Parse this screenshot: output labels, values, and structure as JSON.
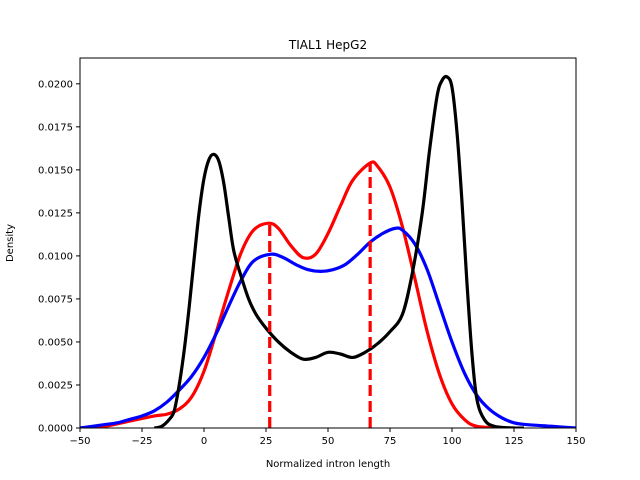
{
  "chart_data": {
    "type": "line",
    "title": "TIAL1 HepG2",
    "xlabel": "Normalized intron length",
    "ylabel": "Density",
    "xlim": [
      -50,
      150
    ],
    "ylim": [
      0,
      0.0215
    ],
    "x_ticks": [
      -50,
      -25,
      0,
      25,
      50,
      75,
      100,
      125,
      150
    ],
    "y_ticks": [
      0.0,
      0.0025,
      0.005,
      0.0075,
      0.01,
      0.0125,
      0.015,
      0.0175,
      0.02
    ],
    "x_tick_labels": [
      "−50",
      "−25",
      "0",
      "25",
      "50",
      "75",
      "100",
      "125",
      "150"
    ],
    "y_tick_labels": [
      "0.0000",
      "0.0025",
      "0.0050",
      "0.0075",
      "0.0100",
      "0.0125",
      "0.0150",
      "0.0175",
      "0.0200"
    ],
    "grid": false,
    "series": [
      {
        "color": "#ff0000",
        "points": [
          [
            -50,
            0
          ],
          [
            -40,
            0.0001
          ],
          [
            -30,
            0.0004
          ],
          [
            -20,
            0.0007
          ],
          [
            -15,
            0.0008
          ],
          [
            -10,
            0.0011
          ],
          [
            -5,
            0.0018
          ],
          [
            0,
            0.0033
          ],
          [
            5,
            0.0056
          ],
          [
            10,
            0.008
          ],
          [
            15,
            0.0102
          ],
          [
            20,
            0.0115
          ],
          [
            26,
            0.0119
          ],
          [
            30,
            0.0116
          ],
          [
            35,
            0.0106
          ],
          [
            40,
            0.0099
          ],
          [
            45,
            0.0101
          ],
          [
            50,
            0.0113
          ],
          [
            55,
            0.0129
          ],
          [
            60,
            0.0144
          ],
          [
            67,
            0.0154
          ],
          [
            70,
            0.0152
          ],
          [
            75,
            0.014
          ],
          [
            80,
            0.0117
          ],
          [
            85,
            0.0087
          ],
          [
            90,
            0.0056
          ],
          [
            95,
            0.0031
          ],
          [
            100,
            0.0014
          ],
          [
            105,
            0.0005
          ],
          [
            110,
            0.0001
          ],
          [
            120,
            0
          ]
        ]
      },
      {
        "color": "#0000ff",
        "points": [
          [
            -50,
            0
          ],
          [
            -45,
            0.0001
          ],
          [
            -40,
            0.0002
          ],
          [
            -35,
            0.0003
          ],
          [
            -30,
            0.0005
          ],
          [
            -25,
            0.0007
          ],
          [
            -20,
            0.001
          ],
          [
            -15,
            0.0015
          ],
          [
            -10,
            0.0022
          ],
          [
            -5,
            0.003
          ],
          [
            0,
            0.0041
          ],
          [
            5,
            0.0055
          ],
          [
            10,
            0.0071
          ],
          [
            15,
            0.0086
          ],
          [
            20,
            0.0097
          ],
          [
            27,
            0.0101
          ],
          [
            32,
            0.0099
          ],
          [
            37,
            0.0095
          ],
          [
            42,
            0.0092
          ],
          [
            47,
            0.0091
          ],
          [
            52,
            0.0092
          ],
          [
            57,
            0.0095
          ],
          [
            62,
            0.0101
          ],
          [
            67,
            0.0108
          ],
          [
            72,
            0.0113
          ],
          [
            77,
            0.0116
          ],
          [
            80,
            0.0115
          ],
          [
            85,
            0.0107
          ],
          [
            90,
            0.0092
          ],
          [
            95,
            0.0071
          ],
          [
            100,
            0.005
          ],
          [
            105,
            0.0032
          ],
          [
            110,
            0.0019
          ],
          [
            115,
            0.0011
          ],
          [
            120,
            0.0006
          ],
          [
            125,
            0.0003
          ],
          [
            130,
            0.0002
          ],
          [
            140,
            0.0001
          ],
          [
            150,
            0
          ]
        ]
      },
      {
        "color": "#000000",
        "points": [
          [
            -20,
            0
          ],
          [
            -17,
            0.0001
          ],
          [
            -14,
            0.0005
          ],
          [
            -12,
            0.001
          ],
          [
            -10,
            0.0025
          ],
          [
            -8,
            0.0045
          ],
          [
            -6,
            0.007
          ],
          [
            -4,
            0.0098
          ],
          [
            -2,
            0.0125
          ],
          [
            0,
            0.0145
          ],
          [
            2,
            0.0156
          ],
          [
            4,
            0.0159
          ],
          [
            6,
            0.0155
          ],
          [
            8,
            0.0142
          ],
          [
            10,
            0.0122
          ],
          [
            12,
            0.0103
          ],
          [
            15,
            0.0088
          ],
          [
            18,
            0.0075
          ],
          [
            21,
            0.0066
          ],
          [
            25,
            0.0058
          ],
          [
            30,
            0.005
          ],
          [
            35,
            0.0044
          ],
          [
            40,
            0.004
          ],
          [
            45,
            0.0041
          ],
          [
            50,
            0.0044
          ],
          [
            55,
            0.0043
          ],
          [
            60,
            0.0041
          ],
          [
            65,
            0.0044
          ],
          [
            70,
            0.0049
          ],
          [
            75,
            0.0056
          ],
          [
            80,
            0.0066
          ],
          [
            84,
            0.009
          ],
          [
            88,
            0.0125
          ],
          [
            91,
            0.0162
          ],
          [
            94,
            0.0193
          ],
          [
            96,
            0.0202
          ],
          [
            98,
            0.0204
          ],
          [
            100,
            0.0198
          ],
          [
            102,
            0.0172
          ],
          [
            104,
            0.0132
          ],
          [
            106,
            0.0085
          ],
          [
            108,
            0.0044
          ],
          [
            110,
            0.0017
          ],
          [
            113,
            0.0005
          ],
          [
            117,
            0.0001
          ],
          [
            125,
            0
          ],
          [
            129,
            0
          ]
        ]
      }
    ],
    "vlines": [
      {
        "x": 26.5,
        "y_top": 0.0119,
        "color": "#ff0000",
        "style": "dashed"
      },
      {
        "x": 67,
        "y_top": 0.0154,
        "color": "#ff0000",
        "style": "dashed"
      }
    ]
  }
}
